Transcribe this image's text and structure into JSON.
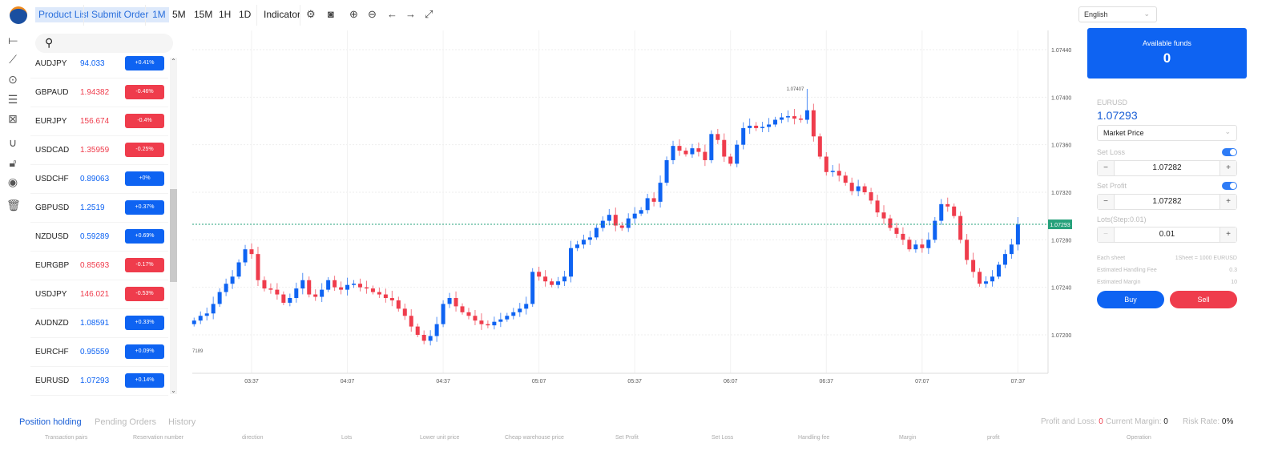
{
  "toolbar": {
    "product_list": "Product List",
    "submit_order": "Submit Order",
    "timeframes": [
      "1M",
      "5M",
      "15M",
      "1H",
      "1D"
    ],
    "active_timeframe": "1M",
    "indicator": "Indicator",
    "language": "English"
  },
  "watchlist": [
    {
      "symbol": "AUDJPY",
      "price": "94.033",
      "change": "+0.41%",
      "dir": "up"
    },
    {
      "symbol": "GBPAUD",
      "price": "1.94382",
      "change": "-0.46%",
      "dir": "down"
    },
    {
      "symbol": "EURJPY",
      "price": "156.674",
      "change": "-0.4%",
      "dir": "down"
    },
    {
      "symbol": "USDCAD",
      "price": "1.35959",
      "change": "-0.25%",
      "dir": "down"
    },
    {
      "symbol": "USDCHF",
      "price": "0.89063",
      "change": "+0%",
      "dir": "up"
    },
    {
      "symbol": "GBPUSD",
      "price": "1.2519",
      "change": "+0.37%",
      "dir": "up"
    },
    {
      "symbol": "NZDUSD",
      "price": "0.59289",
      "change": "+0.69%",
      "dir": "up"
    },
    {
      "symbol": "EURGBP",
      "price": "0.85693",
      "change": "-0.17%",
      "dir": "down"
    },
    {
      "symbol": "USDJPY",
      "price": "146.021",
      "change": "-0.53%",
      "dir": "down"
    },
    {
      "symbol": "AUDNZD",
      "price": "1.08591",
      "change": "+0.33%",
      "dir": "up"
    },
    {
      "symbol": "EURCHF",
      "price": "0.95559",
      "change": "+0.09%",
      "dir": "up"
    },
    {
      "symbol": "EURUSD",
      "price": "1.07293",
      "change": "+0.14%",
      "dir": "up"
    }
  ],
  "colors": {
    "up": "#0e63f2",
    "down": "#ef3c4c",
    "price_tag": "#26a17b"
  },
  "chart_data": {
    "type": "candlestick",
    "interval_minutes": 2,
    "start_time": "03:19",
    "closes": [
      1.07212,
      1.07216,
      1.07218,
      1.07226,
      1.07236,
      1.07243,
      1.07249,
      1.07261,
      1.07272,
      1.07268,
      1.07246,
      1.07239,
      1.07238,
      1.07234,
      1.07227,
      1.07231,
      1.07239,
      1.07246,
      1.07234,
      1.07232,
      1.07238,
      1.07246,
      1.0724,
      1.07238,
      1.07242,
      1.07243,
      1.0724,
      1.07239,
      1.07236,
      1.07234,
      1.07231,
      1.07229,
      1.07222,
      1.07216,
      1.07207,
      1.072,
      1.07195,
      1.07199,
      1.07209,
      1.07226,
      1.07231,
      1.07224,
      1.07219,
      1.07216,
      1.07212,
      1.07209,
      1.07208,
      1.07211,
      1.07213,
      1.07216,
      1.07219,
      1.07222,
      1.07226,
      1.07253,
      1.07249,
      1.07245,
      1.07242,
      1.07245,
      1.07249,
      1.07273,
      1.07276,
      1.0728,
      1.07282,
      1.0729,
      1.07296,
      1.07301,
      1.07292,
      1.0729,
      1.07298,
      1.07302,
      1.07305,
      1.07315,
      1.07312,
      1.07328,
      1.07347,
      1.07359,
      1.07355,
      1.07352,
      1.07357,
      1.07354,
      1.07347,
      1.07369,
      1.07364,
      1.0735,
      1.07344,
      1.0736,
      1.07374,
      1.07376,
      1.07374,
      1.07375,
      1.07377,
      1.07381,
      1.07383,
      1.07384,
      1.07382,
      1.07381,
      1.07389,
      1.07367,
      1.0735,
      1.07337,
      1.07338,
      1.07334,
      1.07328,
      1.07321,
      1.07325,
      1.0732,
      1.07313,
      1.07303,
      1.07298,
      1.0729,
      1.07285,
      1.0728,
      1.07272,
      1.07276,
      1.07273,
      1.0728,
      1.07296,
      1.0731,
      1.07308,
      1.073,
      1.0728,
      1.07263,
      1.07253,
      1.07243,
      1.07245,
      1.07249,
      1.07259,
      1.07268,
      1.07276,
      1.07293
    ],
    "max_high": {
      "value": 1.07407,
      "label": "1.07407"
    },
    "y_ticks": [
      "1.07440",
      "1.07400",
      "1.07360",
      "1.07320",
      "1.07280",
      "1.07240",
      "1.07200"
    ],
    "ylim": [
      1.07176,
      1.07472
    ],
    "x_ticks": [
      "03:37",
      "04:07",
      "04:37",
      "05:07",
      "05:37",
      "06:07",
      "06:37",
      "07:07",
      "07:37"
    ],
    "current_price": "1.07293",
    "corner_label": "7189",
    "grid": true
  },
  "order": {
    "funds_label": "Available funds",
    "funds": "0",
    "symbol": "EURUSD",
    "price": "1.07293",
    "order_type": "Market Price",
    "set_loss_label": "Set Loss",
    "set_loss": "1.07282",
    "set_loss_on": true,
    "set_profit_label": "Set Profit",
    "set_profit": "1.07282",
    "set_profit_on": true,
    "lots_label": "Lots(Step:0.01)",
    "lots": "0.01",
    "each_sheet_label": "Each sheet",
    "each_sheet": "1Sheet = 1000 EURUSD",
    "fee_label": "Estimated Handling Fee",
    "fee": "0.3",
    "margin_label": "Estimated Margin",
    "margin": "10",
    "buy": "Buy",
    "sell": "Sell"
  },
  "positions": {
    "tabs": [
      "Position holding",
      "Pending Orders",
      "History"
    ],
    "active_tab": "Position holding",
    "pl_label": "Profit and Loss:",
    "pl": "0",
    "margin_label": "Current Margin:",
    "margin": "0",
    "risk_label": "Risk Rate:",
    "risk": "0%",
    "columns": [
      "Transaction pairs",
      "Reservation number",
      "direction",
      "Lots",
      "Lower unit price",
      "Cheap warehouse price",
      "Set Profit",
      "Set Loss",
      "Handling fee",
      "Margin",
      "profit",
      "Operation"
    ]
  }
}
